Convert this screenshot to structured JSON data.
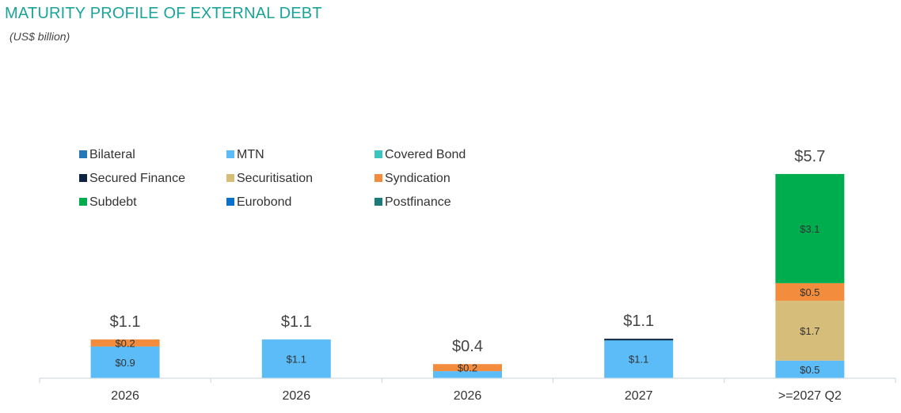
{
  "chart_data": {
    "type": "bar",
    "stacked": true,
    "title": "MATURITY PROFILE OF EXTERNAL DEBT",
    "subtitle": "(US$ billion)",
    "categories": [
      "2026",
      "2026",
      "2026",
      "2027",
      ">=2027 Q2"
    ],
    "series": [
      {
        "name": "Bilateral",
        "color": "#2677b8",
        "values": [
          0,
          0,
          0,
          0,
          0
        ]
      },
      {
        "name": "MTN",
        "color": "#5bbcf8",
        "values": [
          0.9,
          1.1,
          0.2,
          1.1,
          0.5
        ]
      },
      {
        "name": "Covered Bond",
        "color": "#3cc4c0",
        "values": [
          0,
          0,
          0,
          0,
          0
        ]
      },
      {
        "name": "Secured Finance",
        "color": "#0d2340",
        "values": [
          0,
          0,
          0,
          0.02,
          0
        ]
      },
      {
        "name": "Securitisation",
        "color": "#d6bd7a",
        "values": [
          0,
          0,
          0,
          0,
          1.7
        ]
      },
      {
        "name": "Syndication",
        "color": "#f38c3c",
        "values": [
          0.2,
          0,
          0.2,
          0,
          0.5
        ]
      },
      {
        "name": "Subdebt",
        "color": "#00ad4e",
        "values": [
          0,
          0,
          0,
          0,
          3.1
        ]
      },
      {
        "name": "Eurobond",
        "color": "#0a73c9",
        "values": [
          0,
          0,
          0,
          0,
          0
        ]
      },
      {
        "name": "Postfinance",
        "color": "#1a7b78",
        "values": [
          0,
          0,
          0,
          0,
          0
        ]
      }
    ],
    "segment_labels": [
      [
        {
          "series": "MTN",
          "text": "$0.9"
        },
        {
          "series": "Syndication",
          "text": "$0.2"
        }
      ],
      [
        {
          "series": "MTN",
          "text": "$1.1"
        }
      ],
      [
        {
          "series": "Syndication",
          "text": "$0.2"
        }
      ],
      [
        {
          "series": "MTN",
          "text": "$1.1"
        }
      ],
      [
        {
          "series": "MTN",
          "text": "$0.5"
        },
        {
          "series": "Securitisation",
          "text": "$1.7"
        },
        {
          "series": "Syndication",
          "text": "$0.5"
        },
        {
          "series": "Subdebt",
          "text": "$3.1"
        }
      ]
    ],
    "totals": [
      "$1.1",
      "$1.1",
      "$0.4",
      "$1.1",
      "$5.7"
    ],
    "ylim": [
      0,
      6.4
    ],
    "grid": false,
    "legend_position": "top-left"
  }
}
